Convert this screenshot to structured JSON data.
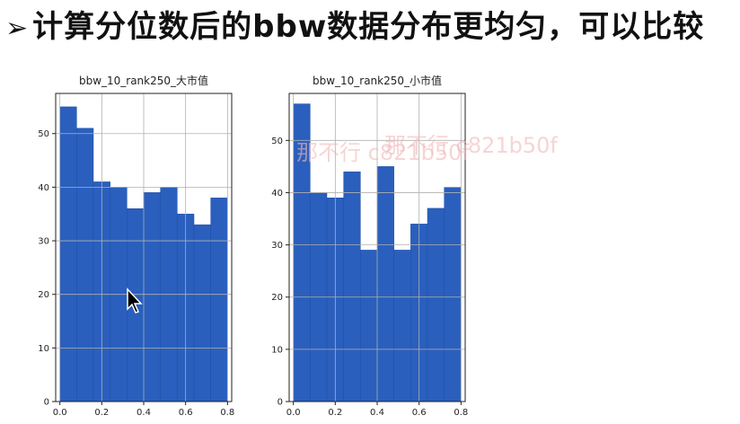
{
  "slide": {
    "arrow": "➢",
    "title": "计算分位数后的bbw数据分布更均匀，可以比较"
  },
  "watermark": {
    "text1": "那不行 c821b50f",
    "text2": "那不行 c821b50f"
  },
  "colors": {
    "bar": "#2a5fbd",
    "bar_edge": "#1e4fa6",
    "grid": "#b0b0b0",
    "axis": "#222222"
  },
  "chart_data": [
    {
      "type": "bar",
      "title": "bbw_10_rank250_大市值",
      "bin_edges": [
        0.0,
        0.08,
        0.16,
        0.24,
        0.32,
        0.4,
        0.48,
        0.56,
        0.64,
        0.72,
        0.8
      ],
      "values": [
        55,
        51,
        41,
        40,
        36,
        39,
        40,
        35,
        33,
        38
      ],
      "xlim": [
        -0.02,
        0.82
      ],
      "ylim": [
        0,
        57.5
      ],
      "xticks": [
        0.0,
        0.2,
        0.4,
        0.6,
        0.8
      ],
      "xtick_labels": [
        "0.0",
        "0.2",
        "0.4",
        "0.6",
        "0.8"
      ],
      "yticks": [
        0,
        10,
        20,
        30,
        40,
        50
      ],
      "ytick_labels": [
        "0",
        "10",
        "20",
        "30",
        "40",
        "50"
      ],
      "grid": true
    },
    {
      "type": "bar",
      "title": "bbw_10_rank250_小市值",
      "bin_edges": [
        0.0,
        0.08,
        0.16,
        0.24,
        0.32,
        0.4,
        0.48,
        0.56,
        0.64,
        0.72,
        0.8
      ],
      "values": [
        57,
        40,
        39,
        44,
        29,
        45,
        29,
        34,
        37,
        41
      ],
      "xlim": [
        -0.02,
        0.82
      ],
      "ylim": [
        0,
        59
      ],
      "xticks": [
        0.0,
        0.2,
        0.4,
        0.6,
        0.8
      ],
      "xtick_labels": [
        "0.0",
        "0.2",
        "0.4",
        "0.6",
        "0.8"
      ],
      "yticks": [
        0,
        10,
        20,
        30,
        40,
        50
      ],
      "ytick_labels": [
        "0",
        "10",
        "20",
        "30",
        "40",
        "50"
      ],
      "grid": true
    }
  ]
}
